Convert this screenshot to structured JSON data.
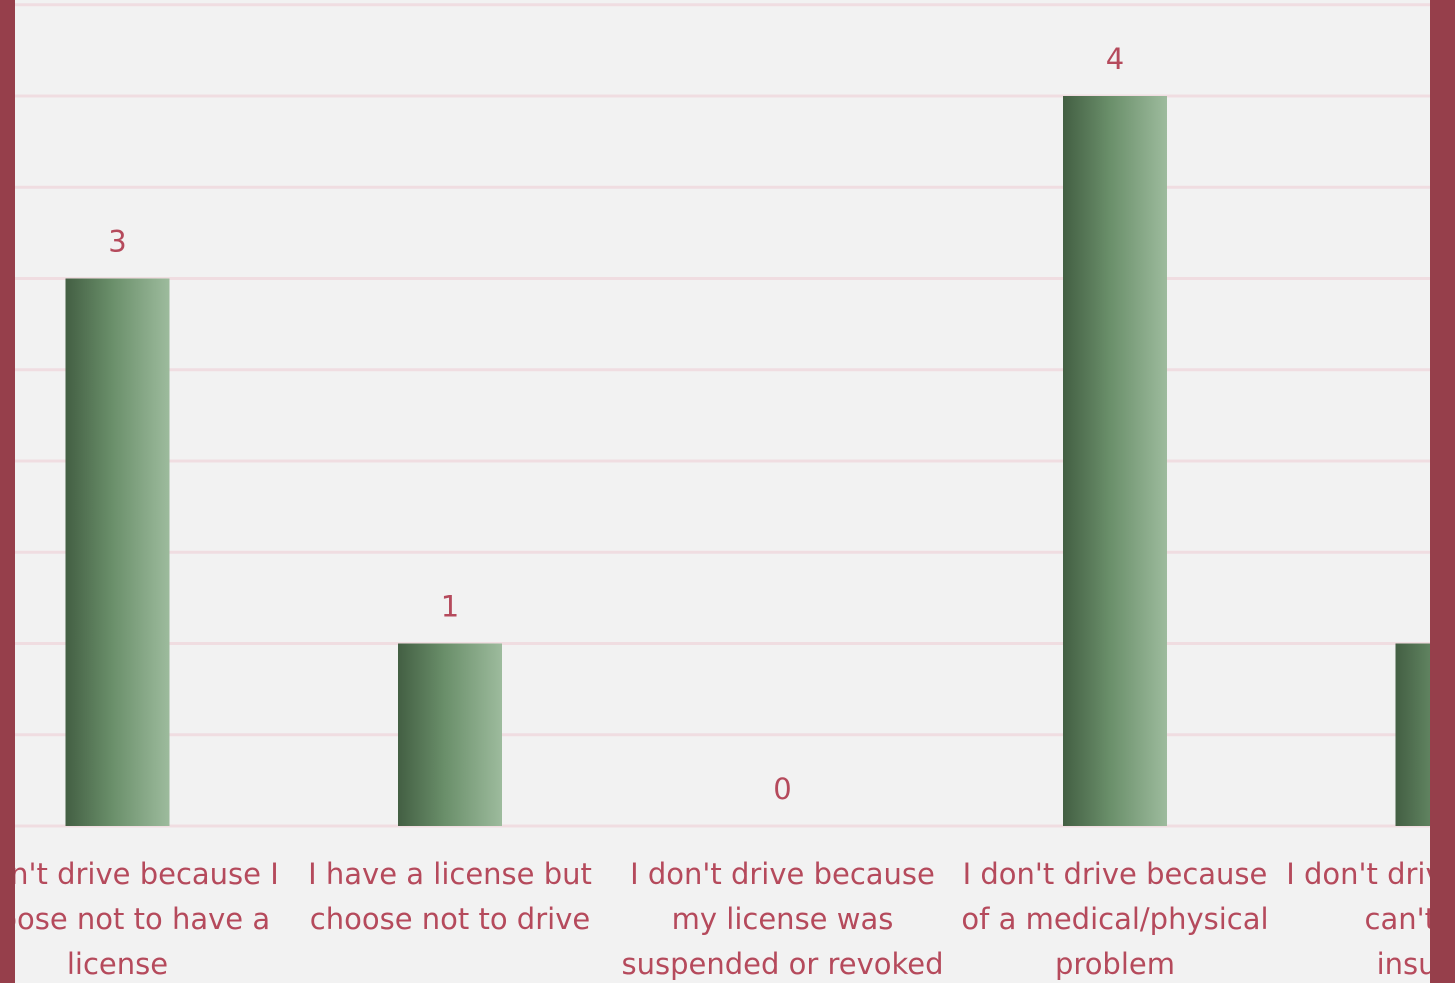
{
  "chart_data": {
    "type": "bar",
    "categories": [
      [
        "I don't drive because I",
        "choose not to have a",
        "license"
      ],
      [
        "I have a license but",
        "choose not to drive"
      ],
      [
        "I don't drive because",
        "my license was",
        "suspended or revoked"
      ],
      [
        "I don't drive because",
        "of a medical/physical",
        "problem"
      ],
      [
        "I don't drive because I",
        "can't afford",
        "insurance"
      ]
    ],
    "values": [
      3,
      1,
      0,
      4,
      1
    ],
    "data_labels": [
      "3",
      "1",
      "0",
      "4",
      ""
    ],
    "ylim": [
      0,
      4.5
    ],
    "grid": true,
    "title": "",
    "xlabel": "",
    "ylabel": "",
    "colors": {
      "frame": "#963f4b",
      "plot_background": "#f2f2f2",
      "gridline": "#f0dde1",
      "text": "#b54a5c",
      "bar_dark": "#435f43",
      "bar_mid": "#6a8f6a",
      "bar_light": "#9dbb9d"
    }
  }
}
